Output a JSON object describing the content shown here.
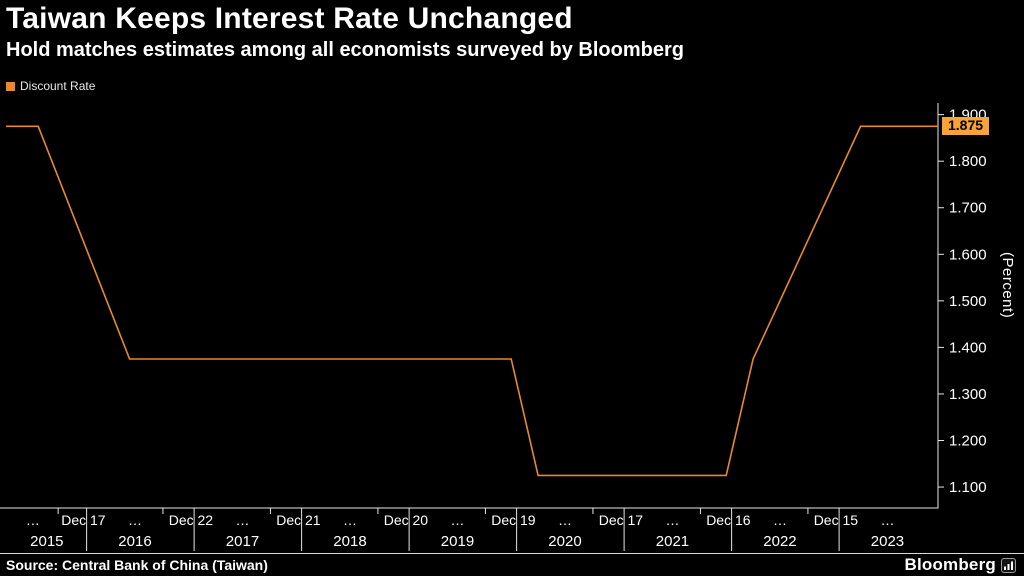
{
  "header": {
    "title": "Taiwan Keeps Interest Rate Unchanged",
    "subtitle": "Hold matches estimates among all economists surveyed by Bloomberg"
  },
  "legend": {
    "label": "Discount Rate",
    "swatch_color": "#E8892E"
  },
  "chart_data": {
    "type": "line",
    "title": "Taiwan Keeps Interest Rate Unchanged",
    "xlabel": "",
    "ylabel": "(Percent)",
    "legend_position": "top-left",
    "grid": false,
    "x_domain": [
      2015.25,
      2023.92
    ],
    "y_domain": [
      1.055,
      1.925
    ],
    "series": [
      {
        "name": "Discount Rate",
        "color": "#E8892E",
        "points": [
          {
            "x": 2015.25,
            "y": 1.875
          },
          {
            "x": 2015.55,
            "y": 1.875
          },
          {
            "x": 2016.4,
            "y": 1.375
          },
          {
            "x": 2019.95,
            "y": 1.375
          },
          {
            "x": 2020.2,
            "y": 1.125
          },
          {
            "x": 2021.95,
            "y": 1.125
          },
          {
            "x": 2022.2,
            "y": 1.375
          },
          {
            "x": 2023.2,
            "y": 1.875
          },
          {
            "x": 2023.92,
            "y": 1.875
          }
        ]
      }
    ],
    "last_value": 1.875,
    "last_value_label": "1.875",
    "y_ticks": [
      {
        "value": 1.9,
        "label": "1.900"
      },
      {
        "value": 1.8,
        "label": "1.800"
      },
      {
        "value": 1.7,
        "label": "1.700"
      },
      {
        "value": 1.6,
        "label": "1.600"
      },
      {
        "value": 1.5,
        "label": "1.500"
      },
      {
        "value": 1.4,
        "label": "1.400"
      },
      {
        "value": 1.3,
        "label": "1.300"
      },
      {
        "value": 1.2,
        "label": "1.200"
      },
      {
        "value": 1.1,
        "label": "1.100"
      }
    ],
    "x_ticks": [
      {
        "x": 2015.5,
        "label": "…"
      },
      {
        "x": 2015.97,
        "label": "Dec 17"
      },
      {
        "x": 2016.45,
        "label": "…"
      },
      {
        "x": 2016.97,
        "label": "Dec 22"
      },
      {
        "x": 2017.45,
        "label": "…"
      },
      {
        "x": 2017.97,
        "label": "Dec 21"
      },
      {
        "x": 2018.45,
        "label": "…"
      },
      {
        "x": 2018.97,
        "label": "Dec 20"
      },
      {
        "x": 2019.45,
        "label": "…"
      },
      {
        "x": 2019.97,
        "label": "Dec 19"
      },
      {
        "x": 2020.45,
        "label": "…"
      },
      {
        "x": 2020.97,
        "label": "Dec 17"
      },
      {
        "x": 2021.45,
        "label": "…"
      },
      {
        "x": 2021.97,
        "label": "Dec 16"
      },
      {
        "x": 2022.45,
        "label": "…"
      },
      {
        "x": 2022.97,
        "label": "Dec 15"
      },
      {
        "x": 2023.45,
        "label": "…"
      }
    ],
    "year_labels": [
      {
        "x": 2015.63,
        "label": "2015"
      },
      {
        "x": 2016.45,
        "label": "2016"
      },
      {
        "x": 2017.45,
        "label": "2017"
      },
      {
        "x": 2018.45,
        "label": "2018"
      },
      {
        "x": 2019.45,
        "label": "2019"
      },
      {
        "x": 2020.45,
        "label": "2020"
      },
      {
        "x": 2021.45,
        "label": "2021"
      },
      {
        "x": 2022.45,
        "label": "2022"
      },
      {
        "x": 2023.45,
        "label": "2023"
      }
    ],
    "year_boundaries": [
      2016,
      2017,
      2018,
      2019,
      2020,
      2021,
      2022,
      2023
    ]
  },
  "footer": {
    "source": "Source: Central Bank of China (Taiwan)",
    "brand": "Bloomberg"
  },
  "colors": {
    "background": "#000000",
    "text": "#FFFFFF",
    "axis": "#E6E6E6",
    "line": "#E8892E",
    "badge_bg": "#F8A339",
    "badge_text": "#000000"
  }
}
